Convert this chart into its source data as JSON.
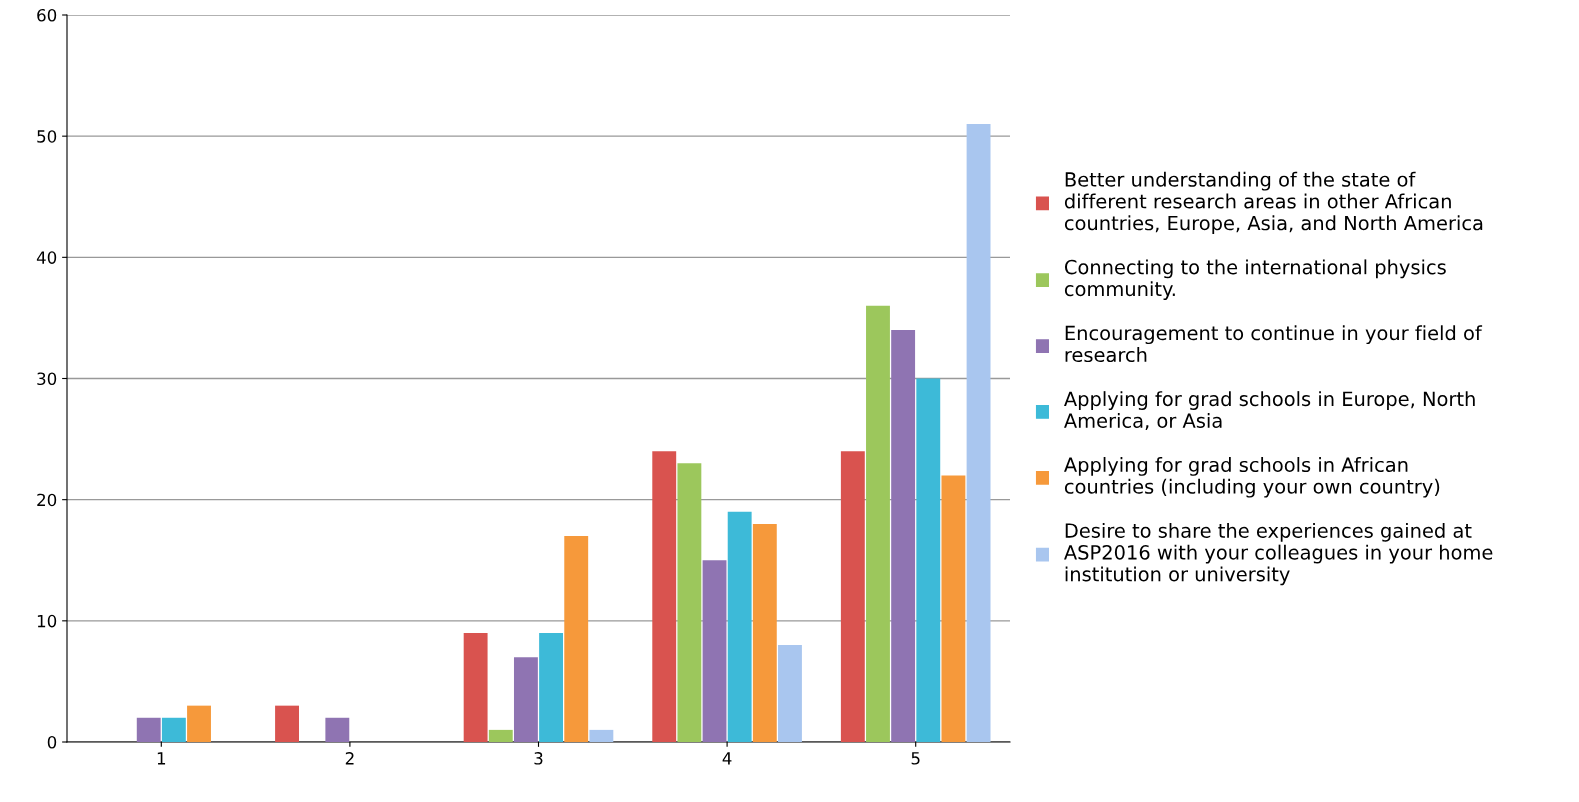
{
  "chart_data": {
    "type": "bar",
    "categories": [
      "1",
      "2",
      "3",
      "4",
      "5"
    ],
    "series": [
      {
        "name": "Better understanding of the state of\ndifferent research areas in other African\ncountries, Europe, Asia, and North America",
        "color": "#d9534f",
        "values": [
          0,
          3,
          9,
          24,
          24
        ]
      },
      {
        "name": "Connecting to the international physics\ncommunity.",
        "color": "#9cc75c",
        "values": [
          0,
          0,
          1,
          23,
          36
        ]
      },
      {
        "name": "Encouragement to continue in your field of\nresearch",
        "color": "#8f74b2",
        "values": [
          2,
          2,
          7,
          15,
          34
        ]
      },
      {
        "name": "Applying for grad schools in Europe, North\nAmerica, or Asia",
        "color": "#3dbad8",
        "values": [
          2,
          0,
          9,
          19,
          30
        ]
      },
      {
        "name": "Applying for grad schools in African\ncountries (including your own country)",
        "color": "#f6993b",
        "values": [
          3,
          0,
          17,
          18,
          22
        ]
      },
      {
        "name": "Desire to share the experiences gained at\nASP2016 with your colleagues in your home\ninstitution or university",
        "color": "#a9c6ef",
        "values": [
          0,
          0,
          1,
          8,
          51
        ]
      }
    ],
    "ylim": [
      0,
      60
    ],
    "yticks": [
      0,
      10,
      20,
      30,
      40,
      50,
      60
    ],
    "grid": "y",
    "legend": "right"
  }
}
